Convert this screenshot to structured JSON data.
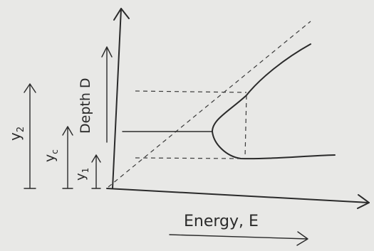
{
  "labels": {
    "y_axis": "Depth D",
    "x_axis": "Energy, E",
    "y2": {
      "base": "y",
      "sub": "2"
    },
    "yc": {
      "base": "y",
      "sub": "c"
    },
    "y1": {
      "base": "y",
      "sub": "1"
    }
  }
}
